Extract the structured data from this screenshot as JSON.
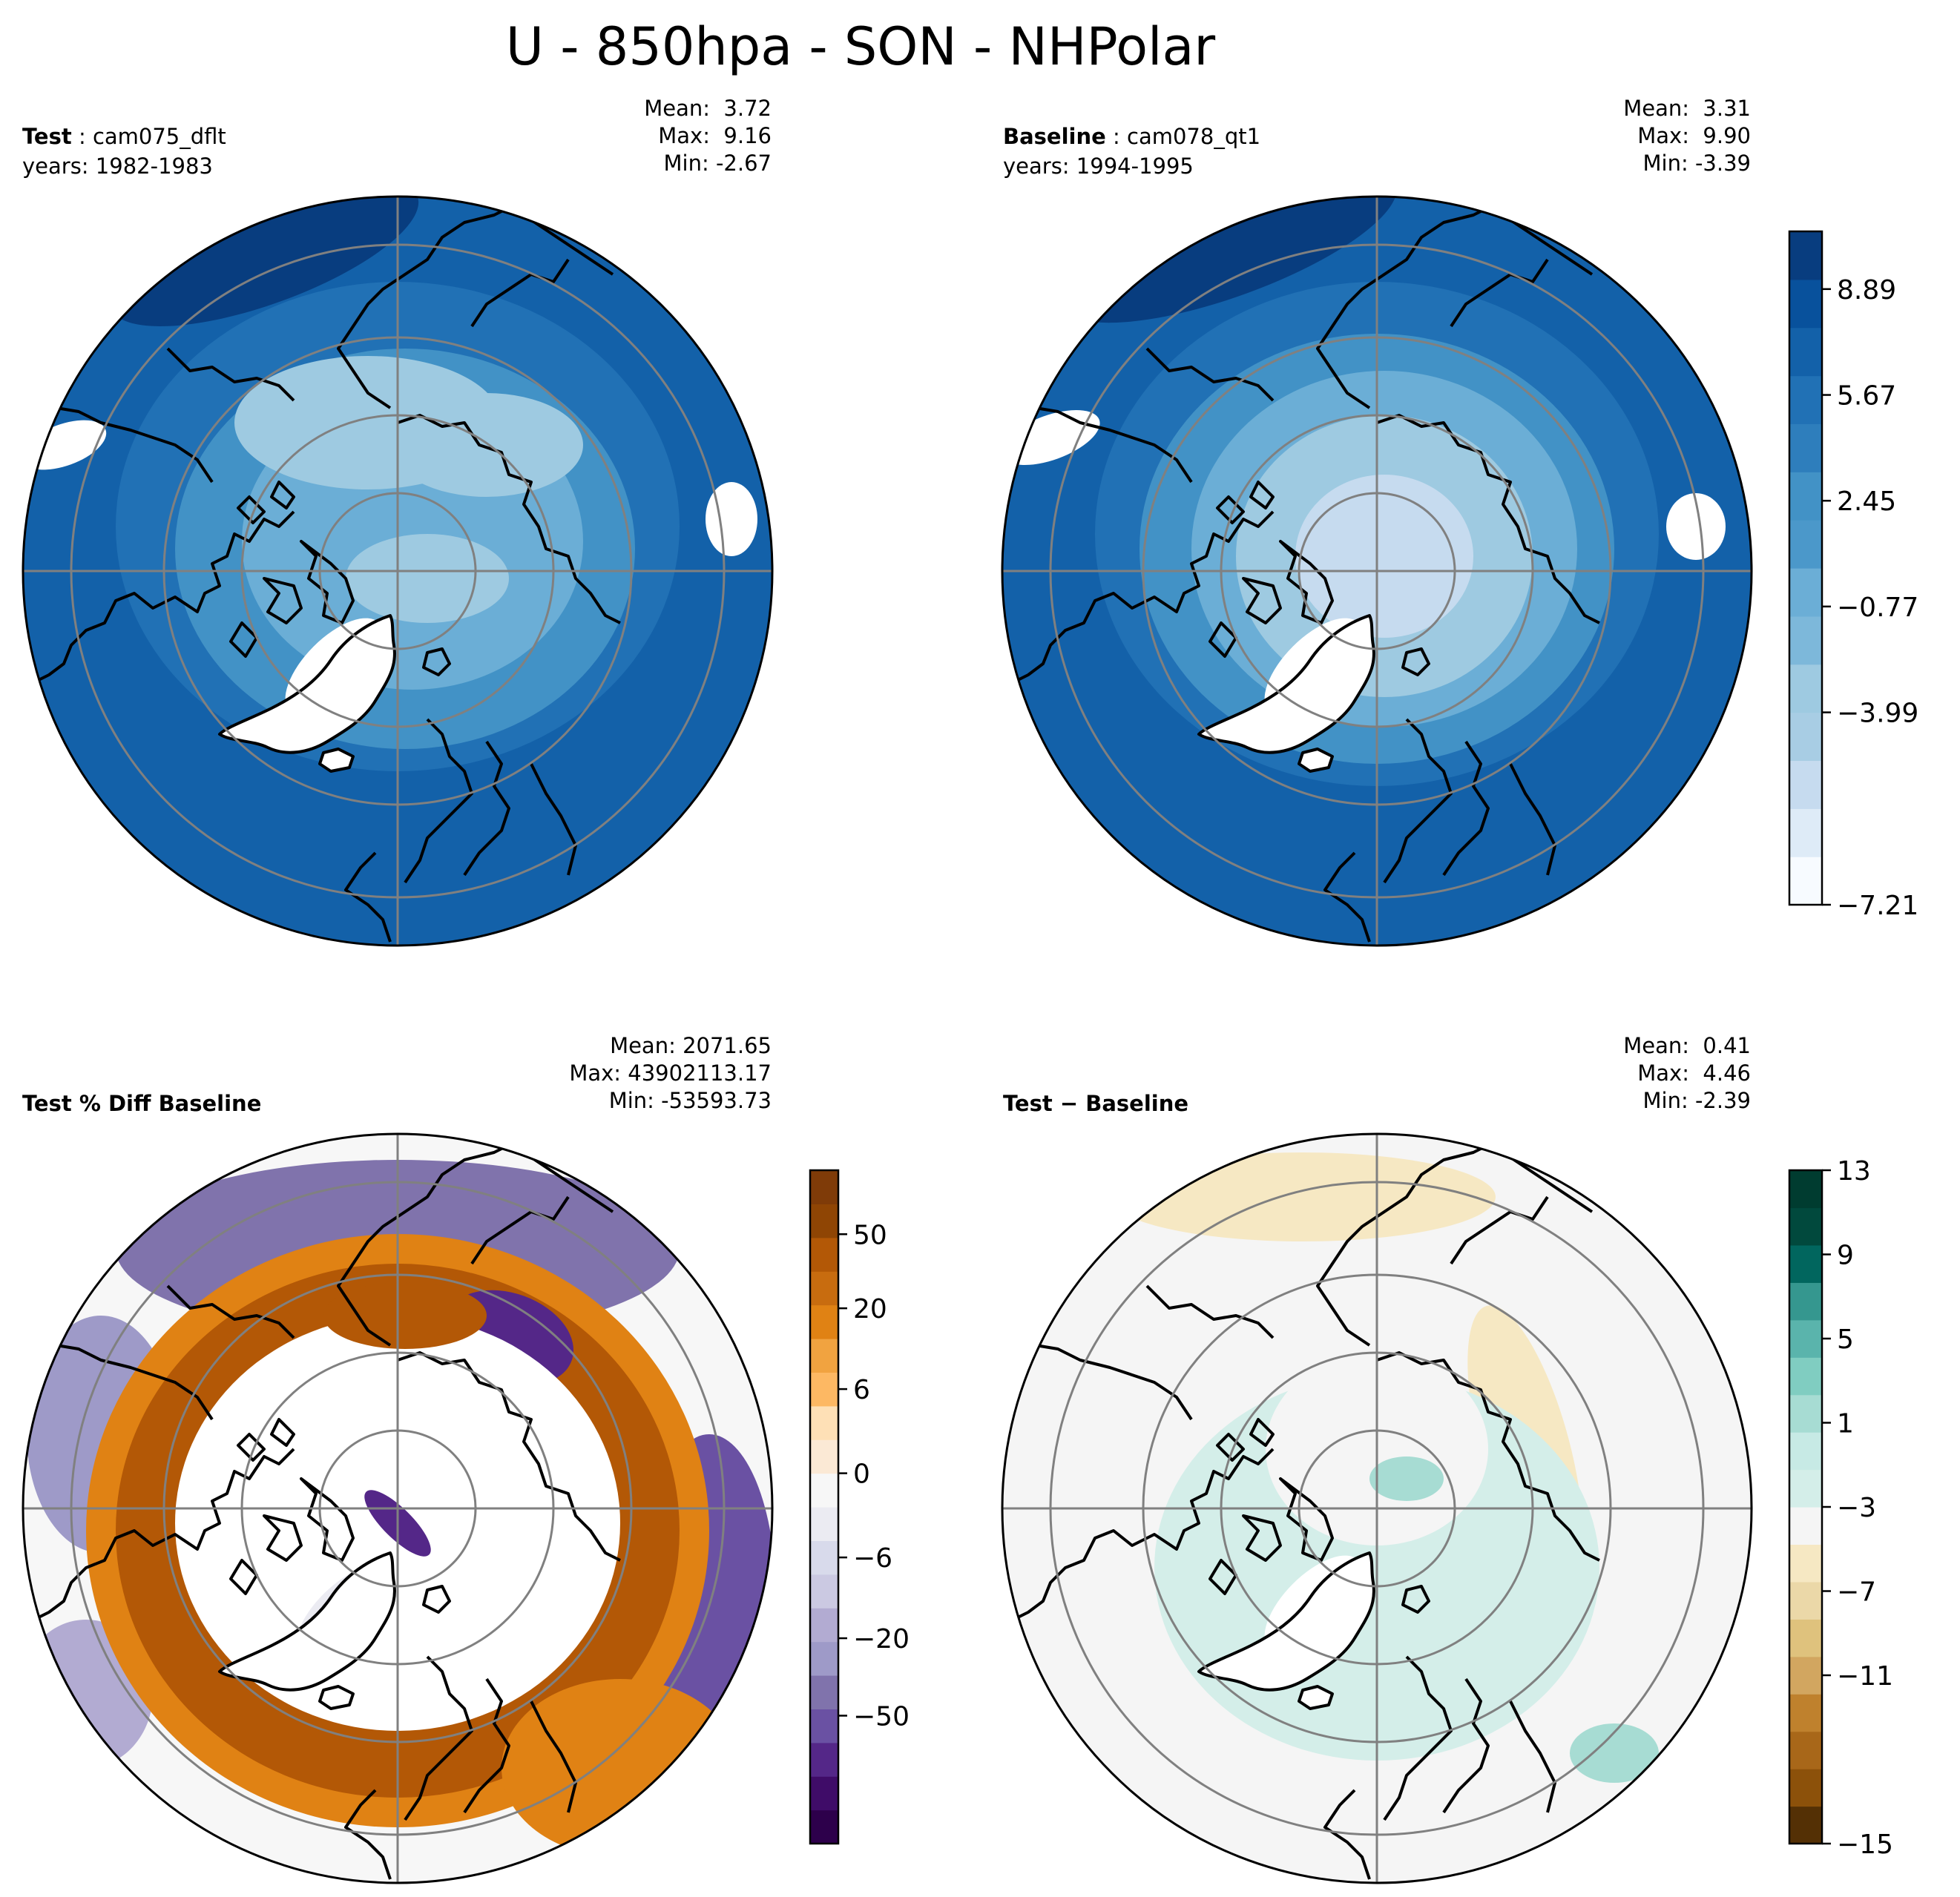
{
  "title": "U - 850hpa - SON - NHPolar",
  "panels": [
    {
      "id": "test",
      "label_bold": "Test",
      "label_rest": " : cam075_dflt",
      "years": "years: 1982-1983",
      "stats": {
        "mean": "Mean:  3.72",
        "max": "Max:  9.16",
        "min": "Min: -2.67"
      }
    },
    {
      "id": "baseline",
      "label_bold": "Baseline",
      "label_rest": " : cam078_qt1",
      "years": "years: 1994-1995",
      "stats": {
        "mean": "Mean:  3.31",
        "max": "Max:  9.90",
        "min": "Min: -3.39"
      }
    },
    {
      "id": "pctdiff",
      "label_bold": "Test % Diff Baseline",
      "label_rest": "",
      "years": "",
      "stats": {
        "mean": "Mean: 2071.65",
        "max": "Max: 43902113.17",
        "min": "Min: -53593.73"
      }
    },
    {
      "id": "diff",
      "label_bold": "Test − Baseline",
      "label_rest": "",
      "years": "",
      "stats": {
        "mean": "Mean:  0.41",
        "max": "Max:  4.46",
        "min": "Min: -2.39"
      }
    }
  ],
  "colorbars": {
    "main": {
      "ticks": [
        "8.89",
        "5.67",
        "2.45",
        "−0.77",
        "−3.99",
        "−7.21"
      ],
      "colors": [
        "#f7fbff",
        "#deebf7",
        "#c6dbef",
        "#a8cde4",
        "#9ecae1",
        "#7db8da",
        "#6baed6",
        "#4b98ca",
        "#4292c6",
        "#2e7ebc",
        "#2171b5",
        "#1361a9",
        "#08519c",
        "#083d7f"
      ]
    },
    "pct": {
      "ticks": [
        "50",
        "20",
        "6",
        "0",
        "−6",
        "−20",
        "−50"
      ],
      "colors": [
        "#2d004b",
        "#3f0c68",
        "#542788",
        "#6a51a3",
        "#8073ac",
        "#9e9ac8",
        "#b2abd2",
        "#cbc9e2",
        "#d8daeb",
        "#ebebf2",
        "#f7f7f7",
        "#fbe9d5",
        "#fee0b6",
        "#fdb863",
        "#f1a340",
        "#e08214",
        "#c86c0f",
        "#b35806",
        "#8f4504",
        "#7f3b08"
      ]
    },
    "diff": {
      "ticks": [
        "13",
        "9",
        "5",
        "1",
        "−3",
        "−7",
        "−11",
        "−15"
      ],
      "colors": [
        "#543005",
        "#8c510a",
        "#a86719",
        "#bf812d",
        "#d2a660",
        "#dfc27d",
        "#ebd8a8",
        "#f6e8c3",
        "#f5f5f5",
        "#d4eee9",
        "#c7eae5",
        "#a7dcd3",
        "#80cdc1",
        "#5ab4ac",
        "#35978f",
        "#01665e",
        "#01493d",
        "#003c30"
      ]
    }
  }
}
